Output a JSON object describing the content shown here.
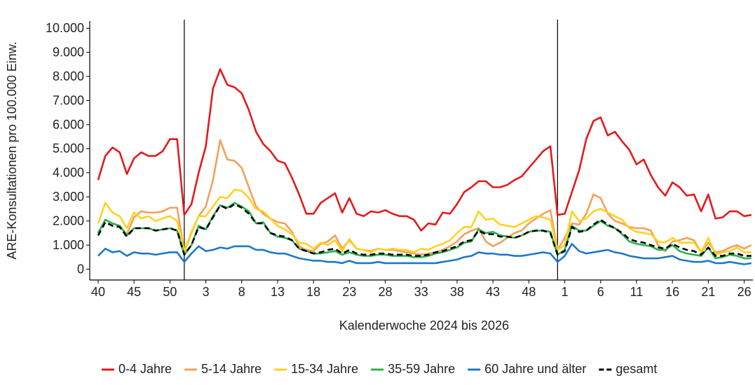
{
  "chart_data": {
    "type": "line",
    "y_label": "ARE-Konsultationen pro 100.000 Einw.",
    "x_label": "Kalenderwoche 2024 bis 2026",
    "categories": [
      "40",
      null,
      null,
      null,
      null,
      "45",
      null,
      null,
      null,
      null,
      "50",
      null,
      null,
      null,
      null,
      "3",
      null,
      null,
      null,
      null,
      "8",
      null,
      null,
      null,
      null,
      "13",
      null,
      null,
      null,
      null,
      "18",
      null,
      null,
      null,
      null,
      "23",
      null,
      null,
      null,
      null,
      "28",
      null,
      null,
      null,
      null,
      "33",
      null,
      null,
      null,
      null,
      "38",
      null,
      null,
      null,
      null,
      "43",
      null,
      null,
      null,
      null,
      "48",
      null,
      null,
      null,
      null,
      "1",
      null,
      null,
      null,
      null,
      "6",
      null,
      null,
      null,
      null,
      "11",
      null,
      null,
      null,
      null,
      "16",
      null,
      null,
      null,
      null,
      "21",
      null,
      null,
      null,
      null,
      "26",
      null
    ],
    "ylim": [
      -450,
      10300
    ],
    "yticks": [
      0,
      {
        "value": 1000,
        "label": "1.000"
      },
      {
        "value": 2000,
        "label": "2.000"
      },
      {
        "value": 3000,
        "label": "3.000"
      },
      {
        "value": 4000,
        "label": "4.000"
      },
      {
        "value": 5000,
        "label": "5.000"
      },
      {
        "value": 6000,
        "label": "6.000"
      },
      {
        "value": 7000,
        "label": "7.000"
      },
      {
        "value": 8000,
        "label": "8.000"
      },
      {
        "value": 9000,
        "label": "9.000"
      },
      {
        "value": 10000,
        "label": "10.000"
      }
    ],
    "series": [
      {
        "name": "0-4 Jahre",
        "color": "#e41a1c",
        "values": [
          3700,
          4700,
          5050,
          4850,
          3950,
          4600,
          4850,
          4700,
          4700,
          4900,
          5400,
          5400,
          2250,
          2700,
          4000,
          5100,
          7500,
          8300,
          7650,
          7550,
          7300,
          6600,
          5700,
          5200,
          4900,
          4500,
          4400,
          3800,
          3100,
          2300,
          2300,
          2750,
          2950,
          3150,
          2350,
          2950,
          2300,
          2200,
          2400,
          2350,
          2450,
          2300,
          2200,
          2200,
          2050,
          1600,
          1900,
          1850,
          2350,
          2300,
          2700,
          3200,
          3400,
          3650,
          3650,
          3400,
          3400,
          3500,
          3700,
          3850,
          4200,
          4550,
          4900,
          5100,
          2250,
          2300,
          3200,
          4100,
          5400,
          6150,
          6300,
          5550,
          5700,
          5300,
          4950,
          4350,
          4550,
          3900,
          3400,
          3050,
          3600,
          3400,
          3050,
          3100,
          2400,
          3100,
          2100,
          2150,
          2400,
          2400,
          2200,
          2250
        ]
      },
      {
        "name": "5-14 Jahre",
        "color": "#f4a05a",
        "values": [
          1500,
          2050,
          1900,
          1800,
          1450,
          2150,
          2400,
          2350,
          2350,
          2400,
          2550,
          2550,
          700,
          1500,
          2200,
          2600,
          3700,
          5350,
          4550,
          4500,
          4200,
          3400,
          2600,
          2300,
          2100,
          1950,
          1900,
          1550,
          950,
          800,
          750,
          1050,
          1150,
          1400,
          850,
          1200,
          850,
          800,
          750,
          850,
          800,
          800,
          750,
          700,
          650,
          600,
          650,
          700,
          800,
          950,
          1150,
          1450,
          1600,
          1700,
          1150,
          950,
          1100,
          1300,
          1500,
          1600,
          1900,
          2100,
          2300,
          2450,
          800,
          1300,
          1900,
          1850,
          2300,
          3100,
          2950,
          2300,
          2000,
          1900,
          1750,
          1700,
          1700,
          1600,
          1000,
          750,
          1150,
          1200,
          1300,
          1200,
          700,
          1100,
          700,
          750,
          900,
          1000,
          850,
          1000
        ]
      },
      {
        "name": "15-34 Jahre",
        "color": "#ffd21f",
        "values": [
          1900,
          2750,
          2350,
          2200,
          1700,
          2350,
          2100,
          2200,
          2000,
          2100,
          2200,
          2000,
          750,
          1550,
          2200,
          2200,
          2600,
          3000,
          2950,
          3300,
          3250,
          2950,
          2500,
          2400,
          2100,
          1800,
          1650,
          1450,
          1100,
          1050,
          850,
          1100,
          1000,
          1200,
          750,
          1250,
          850,
          800,
          700,
          850,
          800,
          850,
          800,
          800,
          700,
          850,
          800,
          950,
          1050,
          1200,
          1500,
          1750,
          1750,
          2400,
          2050,
          2100,
          1850,
          1800,
          1750,
          1900,
          2050,
          2200,
          2150,
          2050,
          800,
          1000,
          2400,
          2000,
          2100,
          2400,
          2500,
          2350,
          2200,
          2050,
          1700,
          1550,
          1500,
          1450,
          1150,
          1100,
          1300,
          1100,
          1100,
          1100,
          700,
          1300,
          600,
          700,
          750,
          900,
          700,
          700
        ]
      },
      {
        "name": "35-59 Jahre",
        "color": "#2ab34b",
        "values": [
          1500,
          2050,
          1900,
          1800,
          1400,
          1700,
          1700,
          1700,
          1600,
          1650,
          1700,
          1600,
          600,
          1000,
          1800,
          1650,
          2200,
          2650,
          2550,
          2750,
          2600,
          2400,
          1900,
          1950,
          1500,
          1350,
          1300,
          1200,
          850,
          750,
          650,
          650,
          700,
          750,
          600,
          700,
          600,
          550,
          550,
          600,
          600,
          550,
          550,
          550,
          500,
          500,
          550,
          650,
          700,
          800,
          900,
          1100,
          1150,
          1650,
          1500,
          1550,
          1400,
          1350,
          1300,
          1400,
          1550,
          1600,
          1600,
          1550,
          600,
          800,
          1800,
          1600,
          1600,
          1800,
          2000,
          1800,
          1700,
          1450,
          1150,
          1050,
          1000,
          950,
          800,
          800,
          1000,
          750,
          650,
          600,
          550,
          900,
          450,
          500,
          600,
          550,
          450,
          450
        ]
      },
      {
        "name": "60 Jahre und älter",
        "color": "#1f78c8",
        "values": [
          550,
          850,
          700,
          750,
          550,
          700,
          650,
          650,
          600,
          650,
          700,
          700,
          300,
          650,
          950,
          750,
          800,
          900,
          850,
          950,
          950,
          950,
          800,
          800,
          700,
          650,
          650,
          550,
          450,
          400,
          350,
          350,
          300,
          300,
          250,
          350,
          250,
          250,
          250,
          300,
          250,
          250,
          250,
          250,
          250,
          250,
          250,
          250,
          300,
          350,
          400,
          500,
          550,
          700,
          650,
          650,
          600,
          600,
          550,
          550,
          600,
          650,
          700,
          650,
          300,
          550,
          1050,
          750,
          650,
          700,
          750,
          800,
          700,
          650,
          550,
          500,
          450,
          450,
          450,
          500,
          550,
          400,
          350,
          300,
          300,
          350,
          250,
          250,
          300,
          250,
          200,
          250
        ]
      },
      {
        "name": "gesamt",
        "color": "#000000",
        "linestyle": "dashed",
        "values": [
          1400,
          1950,
          1800,
          1750,
          1350,
          1700,
          1700,
          1700,
          1600,
          1650,
          1700,
          1600,
          600,
          1000,
          1750,
          1650,
          2150,
          2650,
          2500,
          2700,
          2550,
          2300,
          1900,
          1900,
          1500,
          1400,
          1350,
          1200,
          850,
          750,
          650,
          700,
          800,
          850,
          650,
          800,
          650,
          600,
          600,
          650,
          650,
          600,
          600,
          600,
          550,
          550,
          600,
          700,
          750,
          850,
          950,
          1150,
          1200,
          1600,
          1450,
          1450,
          1350,
          1350,
          1300,
          1400,
          1550,
          1600,
          1600,
          1500,
          600,
          750,
          1750,
          1550,
          1600,
          1850,
          2050,
          1850,
          1700,
          1500,
          1250,
          1150,
          1100,
          1000,
          900,
          850,
          1050,
          900,
          800,
          750,
          600,
          900,
          550,
          550,
          650,
          650,
          550,
          550
        ]
      }
    ]
  }
}
